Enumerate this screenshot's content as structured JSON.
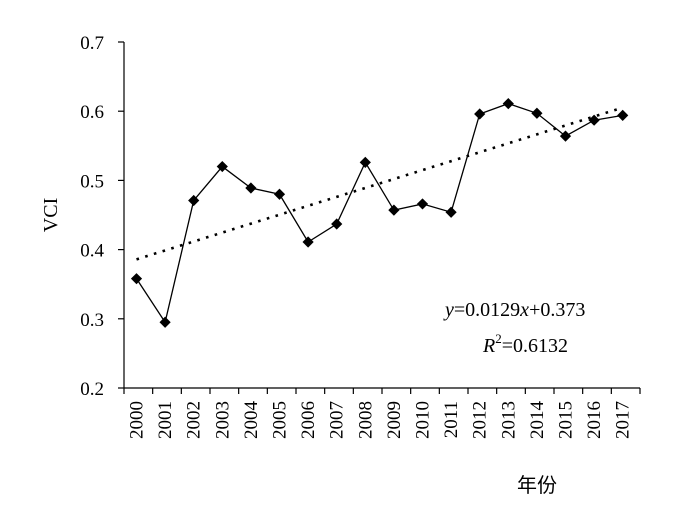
{
  "chart_data": {
    "type": "line",
    "title": "",
    "xlabel": "年份",
    "ylabel": "VCI",
    "x": [
      "2000",
      "2001",
      "2002",
      "2003",
      "2004",
      "2005",
      "2006",
      "2007",
      "2008",
      "2009",
      "2010",
      "2011",
      "2012",
      "2013",
      "2014",
      "2015",
      "2016",
      "2017"
    ],
    "ylim": [
      0.2,
      0.7
    ],
    "yticks": [
      "0.2",
      "0.3",
      "0.4",
      "0.5",
      "0.6",
      "0.7"
    ],
    "grid": false,
    "series": [
      {
        "values": [
          0.358,
          0.295,
          0.471,
          0.52,
          0.489,
          0.48,
          0.411,
          0.437,
          0.526,
          0.457,
          0.466,
          0.454,
          0.596,
          0.611,
          0.597,
          0.564,
          0.587,
          0.594
        ],
        "color": "#000000",
        "marker": "diamond"
      }
    ],
    "trendline": {
      "slope": 0.0129,
      "intercept": 0.373,
      "style": "dotted",
      "color": "#000000"
    },
    "annotations": {
      "equation": {
        "y": "y",
        "eq1": "=0.0129",
        "x": "x",
        "eq2": "+0.373"
      },
      "r2": {
        "R": "R",
        "exp": "2",
        "val": "=0.6132"
      }
    }
  }
}
